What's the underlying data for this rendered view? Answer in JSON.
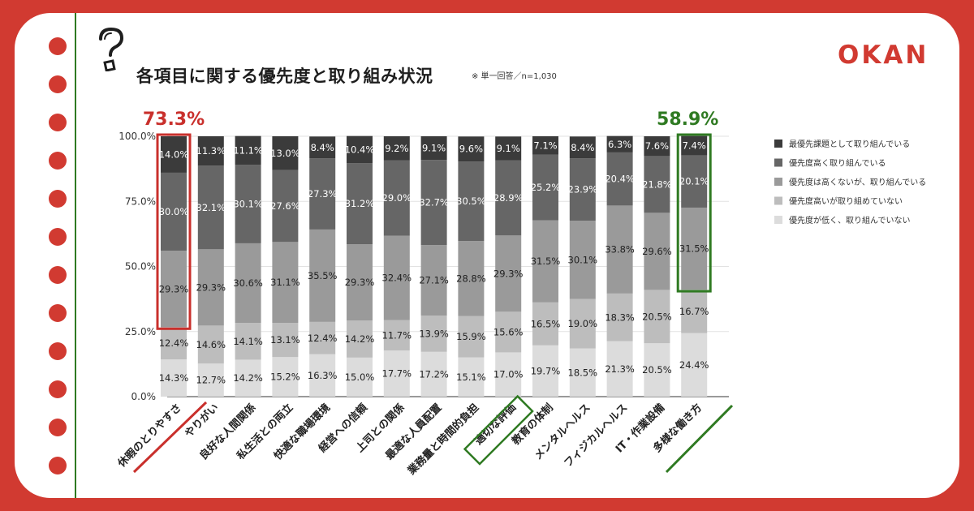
{
  "header": {
    "title": "各項目に関する優先度と取り組み状況",
    "note": "※ 単一回答／n=1,030",
    "logo": "OKAN"
  },
  "highlights": {
    "left_value": "73.3%",
    "right_value": "58.9%"
  },
  "colors": {
    "background": "#d13a31",
    "accent_red": "#c9302c",
    "accent_green": "#2f7a22",
    "series": [
      "#3b3b3b",
      "#666666",
      "#9a9a9a",
      "#bdbdbd",
      "#dcdcdc"
    ]
  },
  "chart_data": {
    "type": "bar",
    "stacked": true,
    "categories": [
      "休暇のとりやすさ",
      "やりがい",
      "良好な人間関係",
      "私生活との両立",
      "快適な職場環境",
      "経営への信頼",
      "上司との関係",
      "最適な人員配置",
      "業務量と時間的負担",
      "適切な評価",
      "教育の体制",
      "メンタルヘルス",
      "フィジカルヘルス",
      "IT・作業設備",
      "多様な働き方"
    ],
    "series": [
      {
        "name": "最優先課題として取り組んでいる",
        "values": [
          14.0,
          11.3,
          11.1,
          13.0,
          8.4,
          10.4,
          9.2,
          9.1,
          9.6,
          9.1,
          7.1,
          8.4,
          6.3,
          7.6,
          7.4
        ]
      },
      {
        "name": "優先度高く取り組んでいる",
        "values": [
          30.0,
          32.1,
          30.1,
          27.6,
          27.3,
          31.2,
          29.0,
          32.7,
          30.5,
          28.9,
          25.2,
          23.9,
          20.4,
          21.8,
          20.1
        ]
      },
      {
        "name": "優先度は高くないが、取り組んでいる",
        "values": [
          29.3,
          29.3,
          30.6,
          31.1,
          35.5,
          29.3,
          32.4,
          27.1,
          28.8,
          29.3,
          31.5,
          30.1,
          33.8,
          29.6,
          31.5
        ]
      },
      {
        "name": "優先度高いが取り組めていない",
        "values": [
          12.4,
          14.6,
          14.1,
          13.1,
          12.4,
          14.2,
          11.7,
          13.9,
          15.9,
          15.6,
          16.5,
          19.0,
          18.3,
          20.5,
          16.7
        ]
      },
      {
        "name": "優先度が低く、取り組んでいない",
        "values": [
          14.3,
          12.7,
          14.2,
          15.2,
          16.3,
          15.0,
          17.7,
          17.2,
          15.1,
          17.0,
          19.7,
          18.5,
          21.3,
          20.5,
          24.4
        ]
      }
    ],
    "yticks": [
      "100.0%",
      "75.0%",
      "50.0%",
      "25.0%",
      "0.0%"
    ],
    "ylim": [
      0,
      100
    ],
    "legend": "right",
    "highlighted_categories": {
      "red": [
        0
      ],
      "green_box": [
        9
      ],
      "green_underline": [
        14
      ]
    }
  }
}
